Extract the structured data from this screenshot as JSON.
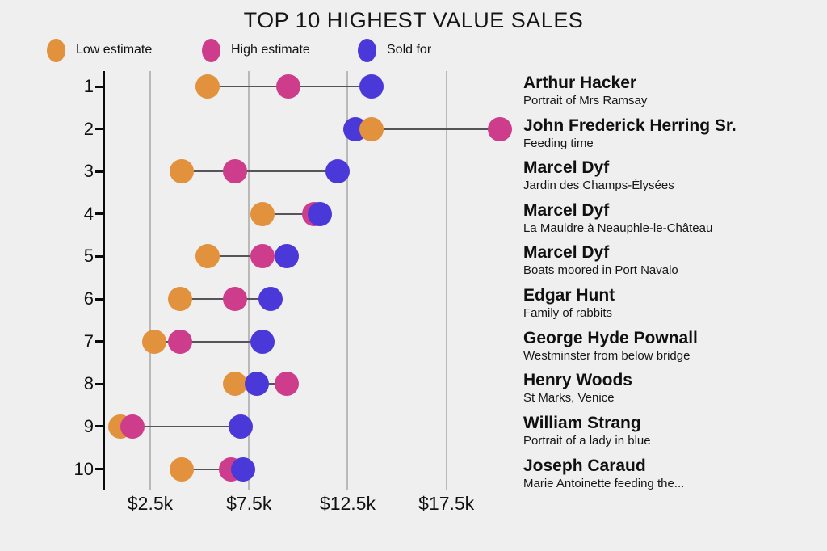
{
  "title": "TOP 10 HIGHEST VALUE SALES",
  "legend": [
    {
      "series": "low",
      "label": "Low estimate"
    },
    {
      "series": "high",
      "label": "High estimate"
    },
    {
      "series": "sold",
      "label": "Sold for"
    }
  ],
  "colors": {
    "low": "#E2913C",
    "high": "#CE3D8C",
    "sold": "#4B38D8",
    "background": "#EFEFEF",
    "gridline": "#B9B9B9",
    "connector": "#55555A",
    "axis": "#0B0B0B",
    "text": "#111111"
  },
  "chart_data": {
    "type": "scatter",
    "subtype": "dumbbell-dot-plot",
    "title": "TOP 10 HIGHEST VALUE SALES",
    "xlabel": "",
    "ylabel": "",
    "x_axis": {
      "min": 0,
      "max": 21000,
      "tick_values": [
        2500,
        7500,
        12500,
        17500
      ],
      "tick_labels": [
        "$2.5k",
        "$7.5k",
        "$12.5k",
        "$17.5k"
      ],
      "grid": true
    },
    "legend_position": "top-left",
    "series_names": {
      "low": "Low estimate",
      "high": "High estimate",
      "sold": "Sold for"
    },
    "rows": [
      {
        "rank": "1",
        "artist": "Arthur Hacker",
        "artwork": "Portrait of Mrs Ramsay",
        "low": 5400,
        "high": 9500,
        "sold": 13700,
        "draw_order": [
          "low",
          "high",
          "sold"
        ]
      },
      {
        "rank": "2",
        "artist": "John Frederick Herring Sr.",
        "artwork": "Feeding time",
        "low": 13700,
        "high": 20200,
        "sold": 12900,
        "draw_order": [
          "sold",
          "low",
          "high"
        ]
      },
      {
        "rank": "3",
        "artist": "Marcel Dyf",
        "artwork": "Jardin des Champs-Élysées",
        "low": 4100,
        "high": 6800,
        "sold": 12000,
        "draw_order": [
          "low",
          "high",
          "sold"
        ]
      },
      {
        "rank": "4",
        "artist": "Marcel Dyf",
        "artwork": "La Mauldre à Neauphle-le-Château",
        "low": 8200,
        "high": 10800,
        "sold": 11100,
        "draw_order": [
          "low",
          "high",
          "sold"
        ]
      },
      {
        "rank": "5",
        "artist": "Marcel Dyf",
        "artwork": "Boats moored in Port Navalo",
        "low": 5400,
        "high": 8200,
        "sold": 9400,
        "draw_order": [
          "low",
          "high",
          "sold"
        ]
      },
      {
        "rank": "6",
        "artist": "Edgar Hunt",
        "artwork": "Family of rabbits",
        "low": 4000,
        "high": 6800,
        "sold": 8600,
        "draw_order": [
          "low",
          "high",
          "sold"
        ]
      },
      {
        "rank": "7",
        "artist": "George Hyde Pownall",
        "artwork": "Westminster from below bridge",
        "low": 2700,
        "high": 4000,
        "sold": 8200,
        "draw_order": [
          "low",
          "high",
          "sold"
        ]
      },
      {
        "rank": "8",
        "artist": "Henry Woods",
        "artwork": "St Marks, Venice",
        "low": 6800,
        "high": 9400,
        "sold": 7900,
        "draw_order": [
          "low",
          "high",
          "sold"
        ]
      },
      {
        "rank": "9",
        "artist": "William Strang",
        "artwork": "Portrait of a lady in blue",
        "low": 1000,
        "high": 1600,
        "sold": 7100,
        "draw_order": [
          "low",
          "high",
          "sold"
        ]
      },
      {
        "rank": "10",
        "artist": "Joseph Caraud",
        "artwork": "Marie Antoinette feeding the...",
        "low": 4100,
        "high": 6600,
        "sold": 7200,
        "draw_order": [
          "low",
          "high",
          "sold"
        ]
      }
    ]
  }
}
